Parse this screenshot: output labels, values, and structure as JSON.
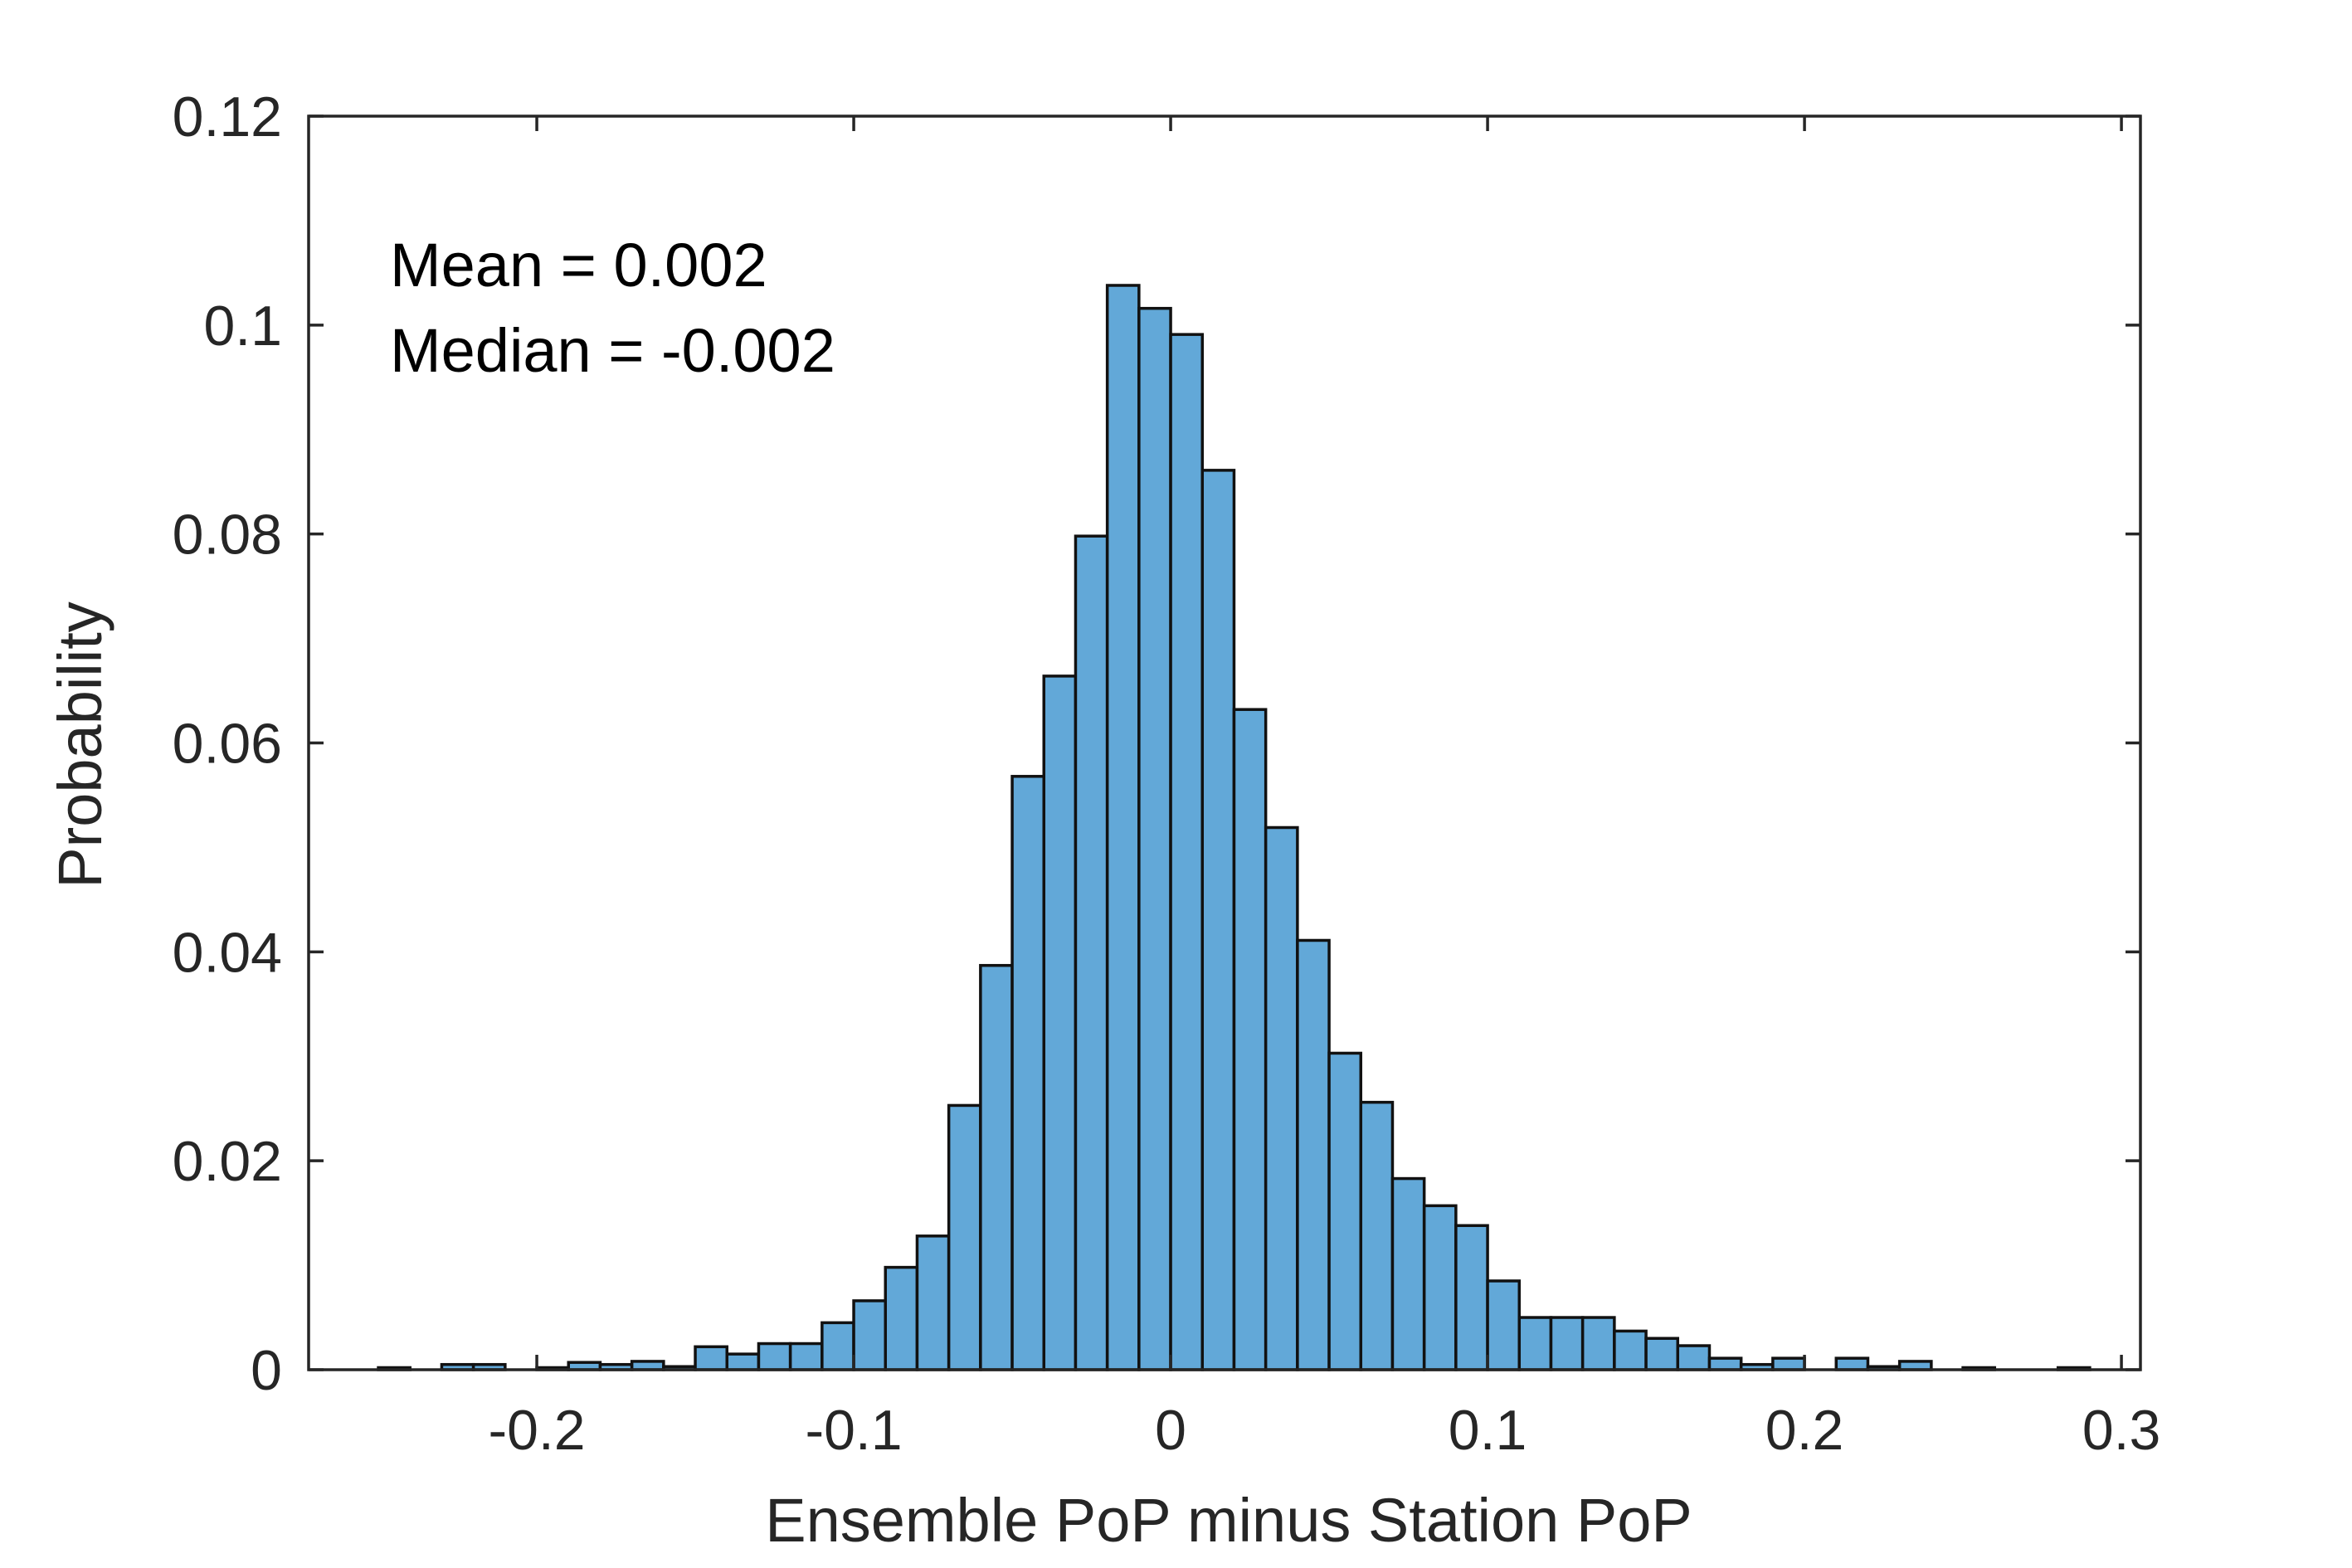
{
  "chart_data": {
    "type": "bar",
    "title": "",
    "xlabel": "Ensemble PoP minus Station PoP",
    "ylabel": "Probability",
    "xlim": [
      -0.272,
      0.306
    ],
    "ylim": [
      0,
      0.12
    ],
    "xticks": [
      -0.2,
      -0.1,
      0,
      0.1,
      0.2,
      0.3
    ],
    "xtick_labels": [
      "-0.2",
      "-0.1",
      "0",
      "0.1",
      "0.2",
      "0.3"
    ],
    "yticks": [
      0,
      0.02,
      0.04,
      0.06,
      0.08,
      0.1,
      0.12
    ],
    "ytick_labels": [
      "0",
      "0.02",
      "0.04",
      "0.06",
      "0.08",
      "0.1",
      "0.12"
    ],
    "grid": false,
    "bar_color": "#62a8d8",
    "edge_color": "#111111",
    "bin_width": 0.01,
    "bins": [
      {
        "x0": -0.25,
        "value": 0.0002
      },
      {
        "x0": -0.23,
        "value": 0.0005
      },
      {
        "x0": -0.22,
        "value": 0.0005
      },
      {
        "x0": -0.2,
        "value": 0.0002
      },
      {
        "x0": -0.19,
        "value": 0.0007
      },
      {
        "x0": -0.18,
        "value": 0.0005
      },
      {
        "x0": -0.17,
        "value": 0.0008
      },
      {
        "x0": -0.16,
        "value": 0.0003
      },
      {
        "x0": -0.15,
        "value": 0.0022
      },
      {
        "x0": -0.14,
        "value": 0.0015
      },
      {
        "x0": -0.13,
        "value": 0.0025
      },
      {
        "x0": -0.12,
        "value": 0.0025
      },
      {
        "x0": -0.11,
        "value": 0.0045
      },
      {
        "x0": -0.1,
        "value": 0.0066
      },
      {
        "x0": -0.09,
        "value": 0.0098
      },
      {
        "x0": -0.08,
        "value": 0.0128
      },
      {
        "x0": -0.07,
        "value": 0.0253
      },
      {
        "x0": -0.06,
        "value": 0.0387
      },
      {
        "x0": -0.05,
        "value": 0.0568
      },
      {
        "x0": -0.04,
        "value": 0.0664
      },
      {
        "x0": -0.03,
        "value": 0.0798
      },
      {
        "x0": -0.02,
        "value": 0.1038
      },
      {
        "x0": -0.01,
        "value": 0.1016
      },
      {
        "x0": 0.0,
        "value": 0.0991
      },
      {
        "x0": 0.01,
        "value": 0.0861
      },
      {
        "x0": 0.02,
        "value": 0.0632
      },
      {
        "x0": 0.03,
        "value": 0.0519
      },
      {
        "x0": 0.04,
        "value": 0.0411
      },
      {
        "x0": 0.05,
        "value": 0.0303
      },
      {
        "x0": 0.06,
        "value": 0.0256
      },
      {
        "x0": 0.07,
        "value": 0.0183
      },
      {
        "x0": 0.08,
        "value": 0.0157
      },
      {
        "x0": 0.09,
        "value": 0.0138
      },
      {
        "x0": 0.1,
        "value": 0.0085
      },
      {
        "x0": 0.11,
        "value": 0.005
      },
      {
        "x0": 0.12,
        "value": 0.005
      },
      {
        "x0": 0.13,
        "value": 0.005
      },
      {
        "x0": 0.14,
        "value": 0.0037
      },
      {
        "x0": 0.15,
        "value": 0.003
      },
      {
        "x0": 0.16,
        "value": 0.0023
      },
      {
        "x0": 0.17,
        "value": 0.0011
      },
      {
        "x0": 0.18,
        "value": 0.0005
      },
      {
        "x0": 0.19,
        "value": 0.0011
      },
      {
        "x0": 0.21,
        "value": 0.0011
      },
      {
        "x0": 0.22,
        "value": 0.0003
      },
      {
        "x0": 0.23,
        "value": 0.0008
      },
      {
        "x0": 0.25,
        "value": 0.0002
      },
      {
        "x0": 0.28,
        "value": 0.0002
      }
    ],
    "annotations": [
      "Mean = 0.002",
      "Median = -0.002"
    ]
  }
}
